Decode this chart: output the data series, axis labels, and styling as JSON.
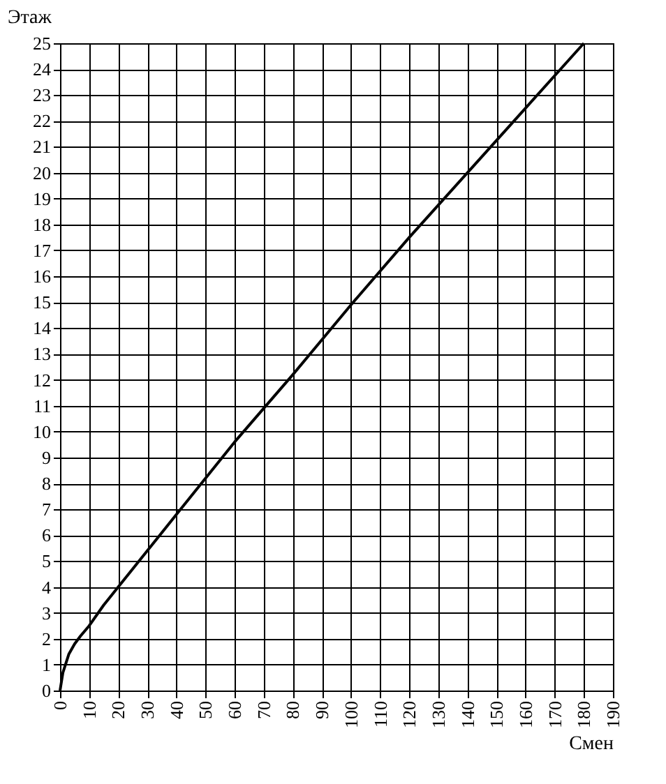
{
  "chart_data": {
    "type": "line",
    "xlabel": "Смен",
    "ylabel": "Этаж",
    "x": [
      0,
      1,
      3,
      5,
      7,
      10,
      15,
      20,
      30,
      40,
      60,
      80,
      100,
      120,
      140,
      160,
      180
    ],
    "series": [
      {
        "color": "#000000",
        "values": [
          0,
          0.7,
          1.4,
          1.8,
          2.1,
          2.5,
          3.3,
          4,
          5.4,
          6.8,
          9.6,
          12.2,
          14.9,
          17.5,
          20,
          22.5,
          25
        ]
      }
    ],
    "xlim": [
      0,
      190
    ],
    "ylim": [
      0,
      25
    ],
    "xticks": [
      0,
      10,
      20,
      30,
      40,
      50,
      60,
      70,
      80,
      90,
      100,
      110,
      120,
      130,
      140,
      150,
      160,
      170,
      180,
      190
    ],
    "yticks": [
      0,
      1,
      2,
      3,
      4,
      5,
      6,
      7,
      8,
      9,
      10,
      11,
      12,
      13,
      14,
      15,
      16,
      17,
      18,
      19,
      20,
      21,
      22,
      23,
      24,
      25
    ],
    "grid": true
  }
}
